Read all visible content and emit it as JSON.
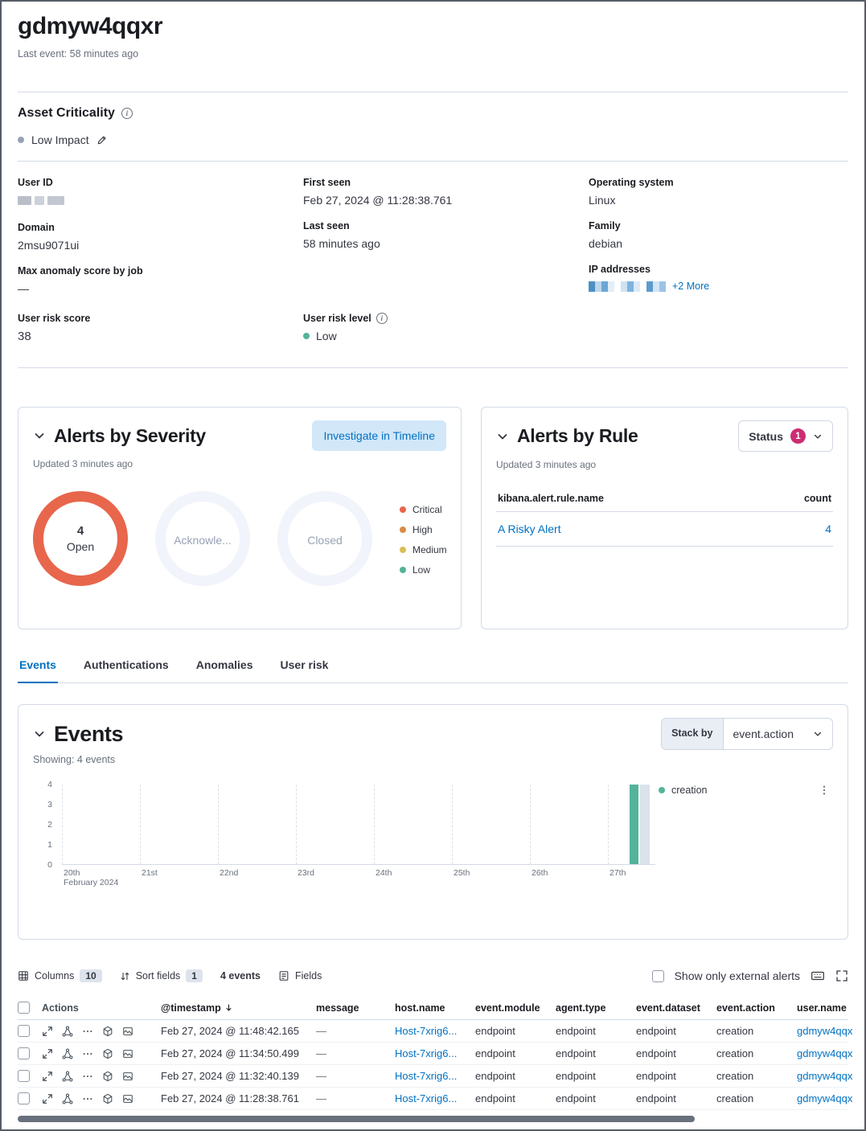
{
  "header": {
    "title": "gdmyw4qqxr",
    "last_event": "Last event: 58 minutes ago"
  },
  "asset_criticality": {
    "title": "Asset Criticality",
    "value": "Low Impact"
  },
  "overview": {
    "user_id": {
      "label": "User ID"
    },
    "domain": {
      "label": "Domain",
      "value": "2msu9071ui"
    },
    "max_anomaly": {
      "label": "Max anomaly score by job",
      "value": "—"
    },
    "first_seen": {
      "label": "First seen",
      "value": "Feb 27, 2024 @ 11:28:38.761"
    },
    "last_seen": {
      "label": "Last seen",
      "value": "58 minutes ago"
    },
    "os": {
      "label": "Operating system",
      "value": "Linux"
    },
    "family": {
      "label": "Family",
      "value": "debian"
    },
    "ip": {
      "label": "IP addresses",
      "more": "+2 More"
    }
  },
  "risk": {
    "score_label": "User risk score",
    "score_value": "38",
    "level_label": "User risk level",
    "level_value": "Low",
    "level_color": "#54b399"
  },
  "alerts_by_severity": {
    "title": "Alerts by Severity",
    "investigate_button": "Investigate in Timeline",
    "updated": "Updated 3 minutes ago",
    "donuts": [
      {
        "count": "4",
        "label": "Open",
        "color": "#e7664c"
      },
      {
        "count": "",
        "label": "Acknowle...",
        "color": "#f1f4fa"
      },
      {
        "count": "",
        "label": "Closed",
        "color": "#f1f4fa"
      }
    ],
    "legend": [
      {
        "label": "Critical",
        "color": "#e7664c"
      },
      {
        "label": "High",
        "color": "#da8b45"
      },
      {
        "label": "Medium",
        "color": "#d6bf57"
      },
      {
        "label": "Low",
        "color": "#54b399"
      }
    ]
  },
  "alerts_by_rule": {
    "title": "Alerts by Rule",
    "status_label": "Status",
    "status_count": "1",
    "status_badge_color": "#cc2d72",
    "updated": "Updated 3 minutes ago",
    "columns": {
      "rule": "kibana.alert.rule.name",
      "count": "count"
    },
    "rows": [
      {
        "rule": "A Risky Alert",
        "count": "4"
      }
    ]
  },
  "tabs": [
    {
      "label": "Events"
    },
    {
      "label": "Authentications"
    },
    {
      "label": "Anomalies"
    },
    {
      "label": "User risk"
    }
  ],
  "events_panel": {
    "title": "Events",
    "showing": "Showing: 4 events",
    "stack_by_label": "Stack by",
    "stack_by_value": "event.action"
  },
  "chart_data": {
    "type": "bar",
    "title": "Events stacked by event.action",
    "x_ticks": [
      "20th",
      "21st",
      "22nd",
      "23rd",
      "24th",
      "25th",
      "26th",
      "27th"
    ],
    "x_secondary": "February 2024",
    "y_ticks": [
      "4",
      "3",
      "2",
      "1",
      "0"
    ],
    "ylim": [
      0,
      4
    ],
    "grid": "vertical-dashed",
    "legend_position": "right",
    "series": [
      {
        "name": "creation",
        "color": "#54b399",
        "points": [
          {
            "x": "Feb 27, 2024",
            "y": 4
          }
        ]
      }
    ]
  },
  "table": {
    "toolbar": {
      "columns_label": "Columns",
      "columns_count": "10",
      "sort_label": "Sort fields",
      "sort_count": "1",
      "events_count": "4 events",
      "fields_label": "Fields",
      "external_label": "Show only external alerts"
    },
    "columns": [
      "Actions",
      "@timestamp",
      "message",
      "host.name",
      "event.module",
      "agent.type",
      "event.dataset",
      "event.action",
      "user.name"
    ],
    "rows": [
      {
        "timestamp": "Feb 27, 2024 @ 11:48:42.165",
        "message": "—",
        "host": "Host-7xrig6...",
        "module": "endpoint",
        "agent": "endpoint",
        "dataset": "endpoint",
        "action": "creation",
        "user": "gdmyw4qqxr"
      },
      {
        "timestamp": "Feb 27, 2024 @ 11:34:50.499",
        "message": "—",
        "host": "Host-7xrig6...",
        "module": "endpoint",
        "agent": "endpoint",
        "dataset": "endpoint",
        "action": "creation",
        "user": "gdmyw4qqxr"
      },
      {
        "timestamp": "Feb 27, 2024 @ 11:32:40.139",
        "message": "—",
        "host": "Host-7xrig6...",
        "module": "endpoint",
        "agent": "endpoint",
        "dataset": "endpoint",
        "action": "creation",
        "user": "gdmyw4qqxr"
      },
      {
        "timestamp": "Feb 27, 2024 @ 11:28:38.761",
        "message": "—",
        "host": "Host-7xrig6...",
        "module": "endpoint",
        "agent": "endpoint",
        "dataset": "endpoint",
        "action": "creation",
        "user": "gdmyw4qqxr"
      }
    ]
  }
}
